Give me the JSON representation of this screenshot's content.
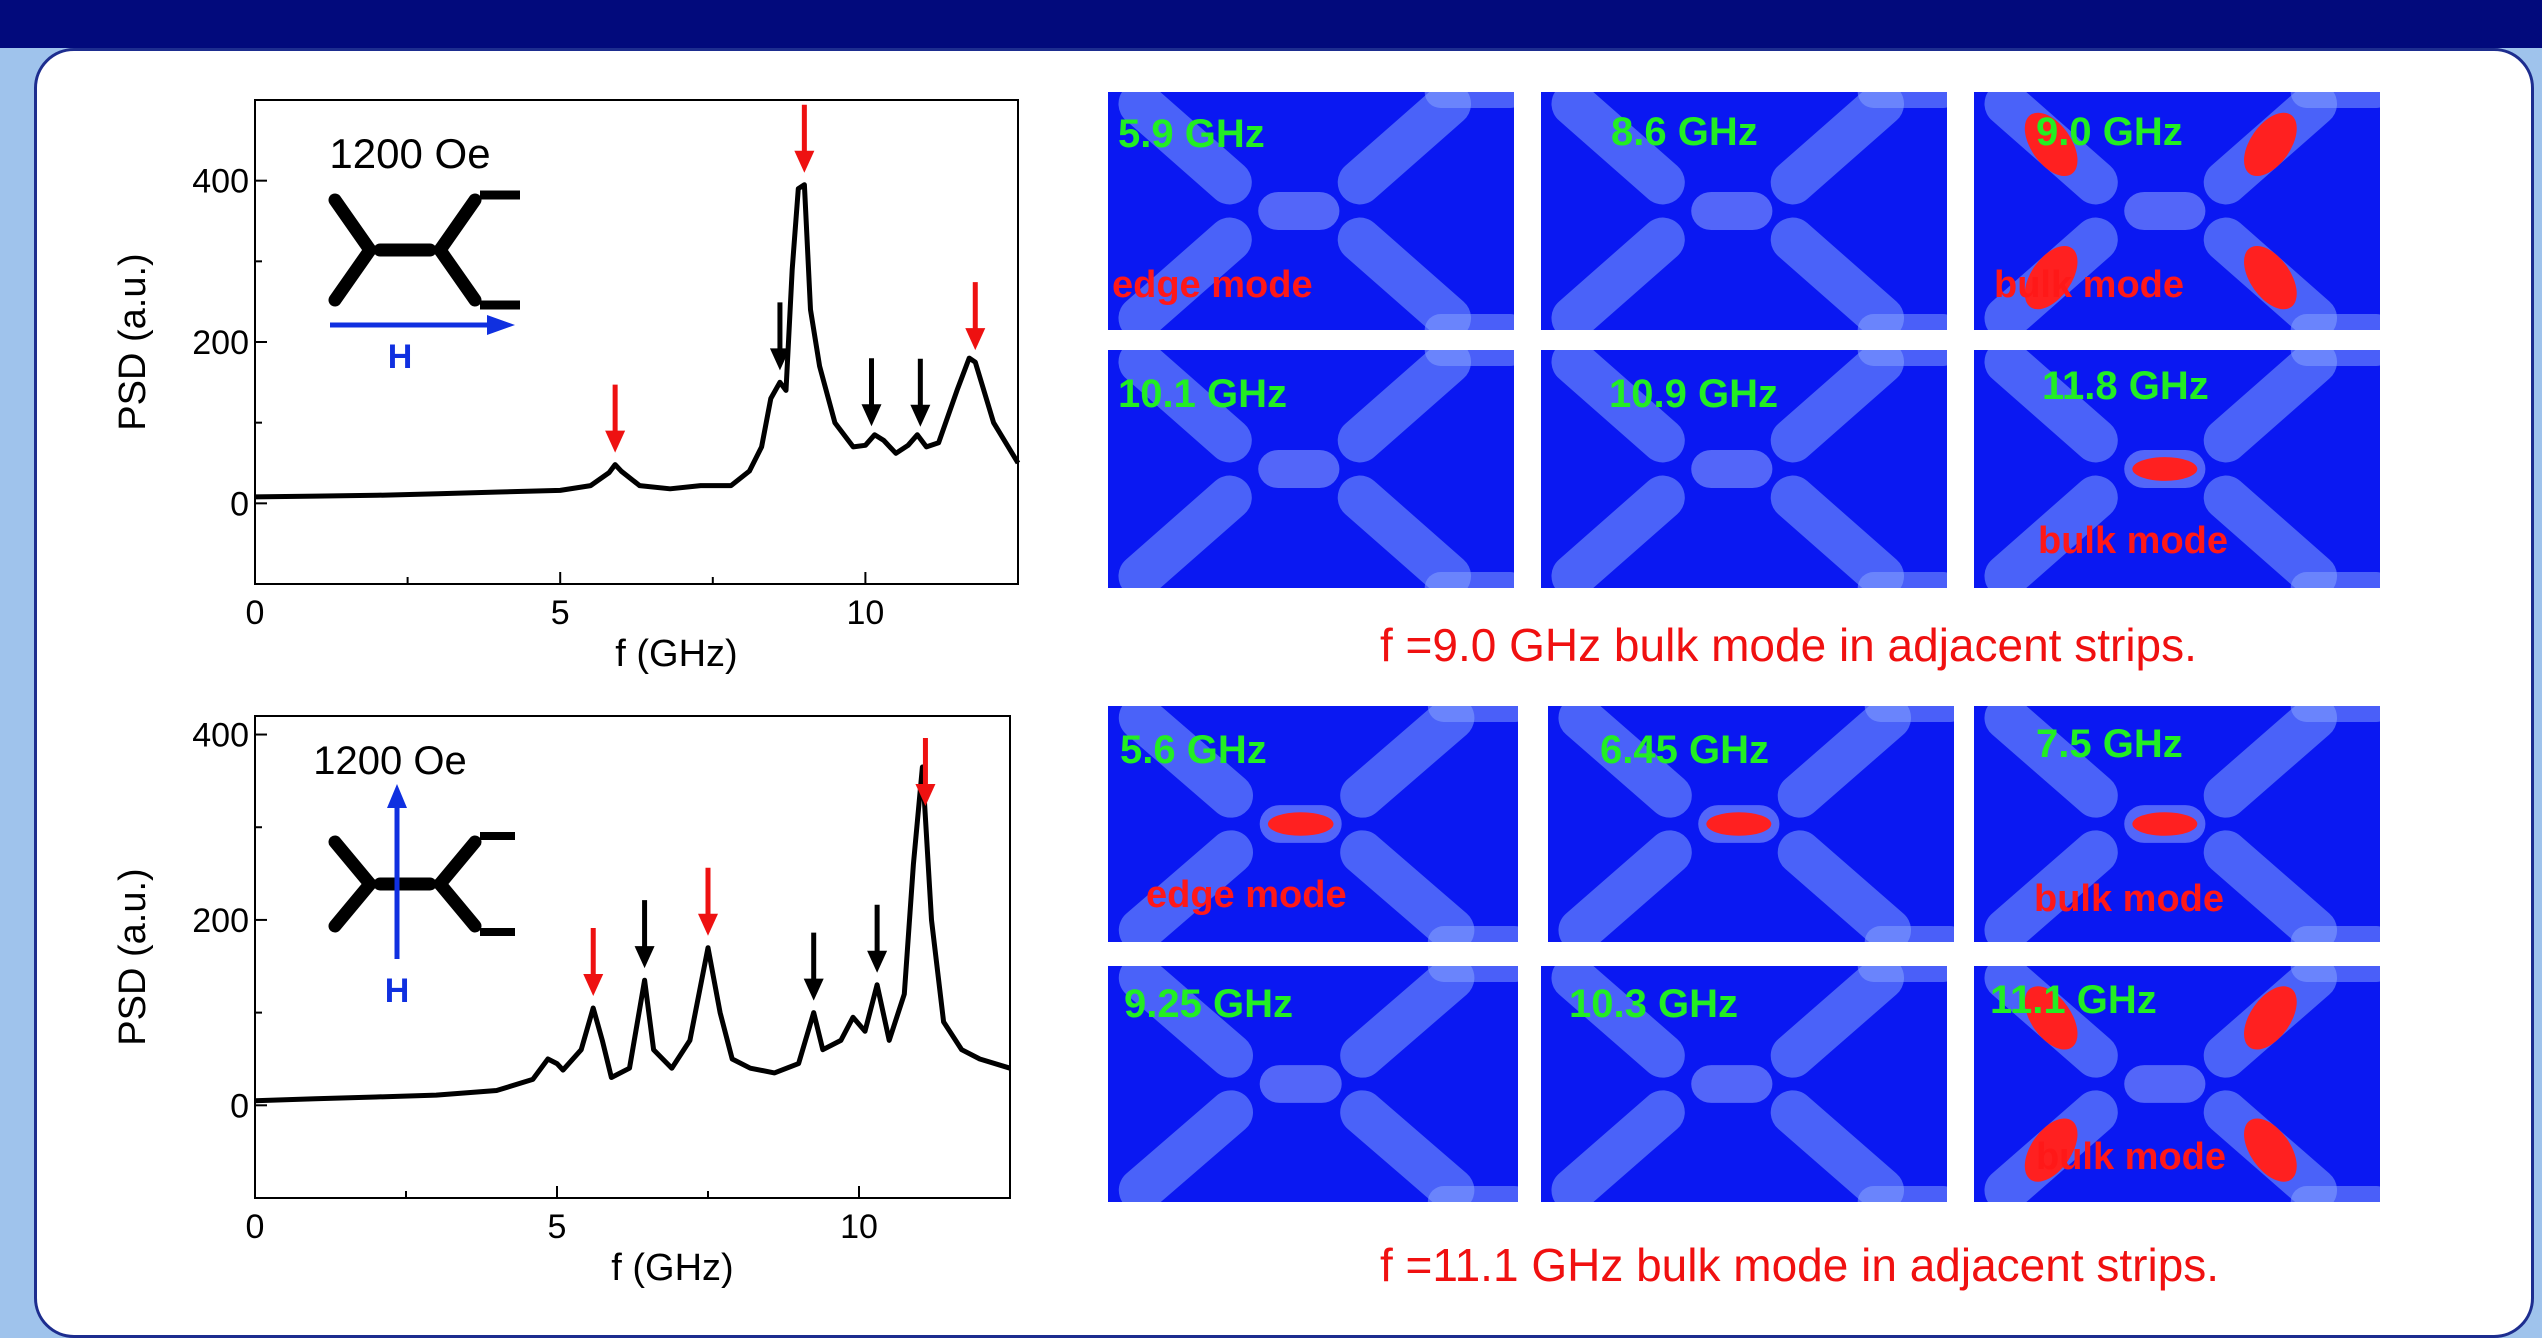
{
  "chart_data": [
    {
      "type": "line",
      "xlabel": "f (GHz)",
      "ylabel": "PSD (a.u.)",
      "xlim": [
        0,
        12.5
      ],
      "ylim": [
        -100,
        500
      ],
      "xticks": [
        0,
        5,
        10
      ],
      "yticks": [
        0,
        200,
        400
      ],
      "inset": {
        "field_label": "1200 Oe",
        "arrow_label": "H",
        "field_direction": "horizontal"
      },
      "series": [
        {
          "x": [
            0,
            1,
            2,
            3,
            4,
            5,
            5.5,
            5.8,
            5.9,
            6.0,
            6.3,
            6.8,
            7.3,
            7.8,
            8.1,
            8.3,
            8.45,
            8.6,
            8.7,
            8.8,
            8.9,
            9.0,
            9.1,
            9.25,
            9.5,
            9.8,
            10.0,
            10.15,
            10.3,
            10.5,
            10.7,
            10.85,
            11.0,
            11.2,
            11.5,
            11.7,
            11.8,
            11.9,
            12.1,
            12.5
          ],
          "values": [
            8,
            9,
            10,
            12,
            14,
            16,
            22,
            38,
            48,
            40,
            22,
            18,
            22,
            22,
            40,
            70,
            130,
            150,
            140,
            290,
            390,
            395,
            240,
            170,
            100,
            70,
            72,
            85,
            78,
            62,
            72,
            85,
            70,
            75,
            140,
            180,
            175,
            150,
            100,
            50
          ]
        }
      ],
      "red_arrows_at": [
        5.9,
        9.0,
        11.8
      ],
      "black_arrows_at": [
        8.6,
        10.1,
        10.9
      ]
    },
    {
      "type": "line",
      "xlabel": "f (GHz)",
      "ylabel": "PSD (a.u.)",
      "xlim": [
        0,
        12.5
      ],
      "ylim": [
        -100,
        420
      ],
      "xticks": [
        0,
        5,
        10
      ],
      "yticks": [
        0,
        200,
        400
      ],
      "inset": {
        "field_label": "1200 Oe",
        "arrow_label": "H",
        "field_direction": "vertical"
      },
      "series": [
        {
          "x": [
            0,
            1,
            2,
            3,
            4,
            4.6,
            4.85,
            5.0,
            5.1,
            5.4,
            5.6,
            5.75,
            5.9,
            6.2,
            6.45,
            6.6,
            6.9,
            7.2,
            7.5,
            7.7,
            7.9,
            8.2,
            8.6,
            9.0,
            9.25,
            9.4,
            9.7,
            9.9,
            10.1,
            10.3,
            10.5,
            10.75,
            10.9,
            11.05,
            11.2,
            11.4,
            11.7,
            12.0,
            12.5
          ],
          "values": [
            5,
            7,
            9,
            11,
            16,
            28,
            50,
            45,
            38,
            60,
            105,
            70,
            30,
            40,
            135,
            60,
            40,
            70,
            170,
            100,
            50,
            40,
            35,
            45,
            100,
            60,
            70,
            95,
            80,
            130,
            70,
            120,
            260,
            365,
            200,
            90,
            60,
            50,
            40
          ]
        }
      ],
      "red_arrows_at": [
        5.6,
        7.5,
        11.1
      ],
      "black_arrows_at": [
        6.45,
        9.25,
        10.3
      ]
    }
  ],
  "top_grid": {
    "tiles": [
      {
        "freq": "5.9 GHz",
        "mode": "edge mode"
      },
      {
        "freq": "8.6 GHz",
        "mode": ""
      },
      {
        "freq": "9.0 GHz",
        "mode": "bulk mode"
      },
      {
        "freq": "10.1 GHz",
        "mode": ""
      },
      {
        "freq": "10.9 GHz",
        "mode": ""
      },
      {
        "freq": "11.8 GHz",
        "mode": "bulk mode"
      }
    ],
    "caption": "f =9.0 GHz  bulk mode in adjacent strips."
  },
  "bottom_grid": {
    "tiles": [
      {
        "freq": "5.6 GHz",
        "mode": "edge mode"
      },
      {
        "freq": "6.45 GHz",
        "mode": ""
      },
      {
        "freq": "7.5 GHz",
        "mode": "bulk mode"
      },
      {
        "freq": "9.25 GHz",
        "mode": ""
      },
      {
        "freq": "10.3 GHz",
        "mode": ""
      },
      {
        "freq": "11.1 GHz",
        "mode": "bulk mode"
      }
    ],
    "caption": "f =11.1 GHz bulk mode in adjacent strips."
  },
  "colors": {
    "header": "#020a7c",
    "background": "#9fc3ec",
    "sim_blue": "#0a18f2",
    "freq_green": "#22ee22",
    "mode_red": "#ff1818",
    "arrow_red": "#ee1111",
    "field_arrow": "#1030e0"
  }
}
